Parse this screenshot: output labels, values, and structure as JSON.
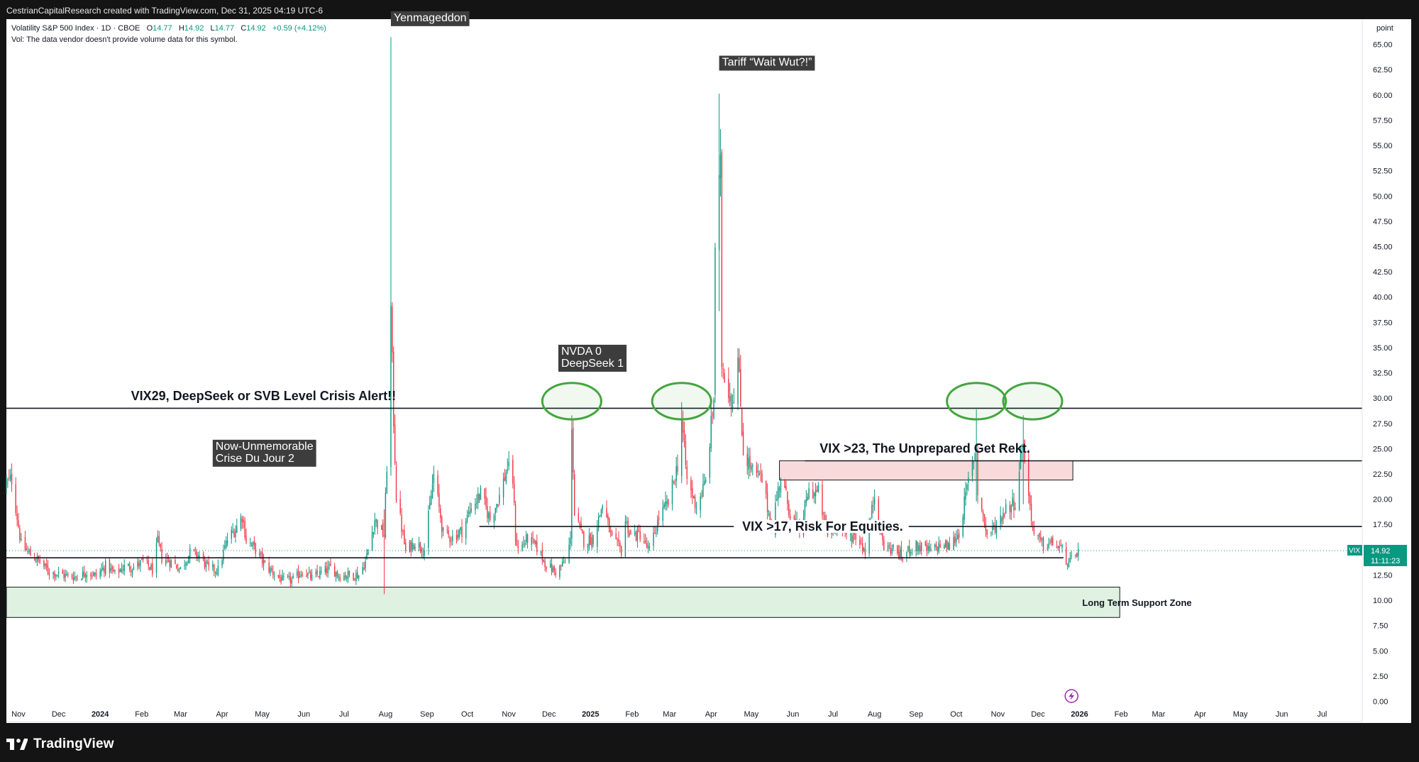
{
  "attribution": "CestrianCapitalResearch created with TradingView.com, Dec 31, 2025 04:19 UTC-6",
  "branding": {
    "name": "TradingView",
    "logo_icon": "tradingview-logo-icon"
  },
  "legend": {
    "symbol": "Volatility S&P 500 Index · 1D · CBOE",
    "open_label": "O",
    "open": "14.77",
    "high_label": "H",
    "high": "14.92",
    "low_label": "L",
    "low": "14.77",
    "close_label": "C",
    "close": "14.92",
    "change": "+0.59 (+4.12%)",
    "vol_note": "Vol: The data vendor doesn't provide volume data for this symbol."
  },
  "colors": {
    "up": "#089981",
    "down": "#f23645",
    "frame": "#141414",
    "ellipse": "#43a53d",
    "support_fill": "#dff1e0",
    "resistance_fill": "#f9dada"
  },
  "chart_data": {
    "type": "candlestick",
    "symbol": "VIX",
    "unit_label": "point",
    "y_ticks": [
      "65.00",
      "62.50",
      "60.00",
      "57.50",
      "55.00",
      "52.50",
      "50.00",
      "47.50",
      "45.00",
      "42.50",
      "40.00",
      "37.50",
      "35.00",
      "32.50",
      "30.00",
      "27.50",
      "25.00",
      "22.50",
      "20.00",
      "17.50",
      "15.00",
      "12.50",
      "10.00",
      "7.50",
      "5.00",
      "2.50",
      "0.00"
    ],
    "ylim": [
      -2.0,
      67.5
    ],
    "x_ticks": [
      {
        "label": "Nov",
        "date": "2023-11-01"
      },
      {
        "label": "Dec",
        "date": "2023-12-01"
      },
      {
        "label": "2024",
        "date": "2024-01-01",
        "bold": true
      },
      {
        "label": "Feb",
        "date": "2024-02-01"
      },
      {
        "label": "Mar",
        "date": "2024-03-01"
      },
      {
        "label": "Apr",
        "date": "2024-04-01"
      },
      {
        "label": "May",
        "date": "2024-05-01"
      },
      {
        "label": "Jun",
        "date": "2024-06-01"
      },
      {
        "label": "Jul",
        "date": "2024-07-01"
      },
      {
        "label": "Aug",
        "date": "2024-08-01"
      },
      {
        "label": "Sep",
        "date": "2024-09-01"
      },
      {
        "label": "Oct",
        "date": "2024-10-01"
      },
      {
        "label": "Nov",
        "date": "2024-11-01"
      },
      {
        "label": "Dec",
        "date": "2024-12-01"
      },
      {
        "label": "2025",
        "date": "2025-01-01",
        "bold": true
      },
      {
        "label": "Feb",
        "date": "2025-02-01"
      },
      {
        "label": "Mar",
        "date": "2025-03-01"
      },
      {
        "label": "Apr",
        "date": "2025-04-01"
      },
      {
        "label": "May",
        "date": "2025-05-01"
      },
      {
        "label": "Jun",
        "date": "2025-06-01"
      },
      {
        "label": "Jul",
        "date": "2025-07-01"
      },
      {
        "label": "Aug",
        "date": "2025-08-01"
      },
      {
        "label": "Sep",
        "date": "2025-09-01"
      },
      {
        "label": "Oct",
        "date": "2025-10-01"
      },
      {
        "label": "Nov",
        "date": "2025-11-01"
      },
      {
        "label": "Dec",
        "date": "2025-12-01"
      },
      {
        "label": "2026",
        "date": "2026-01-01",
        "bold": true
      },
      {
        "label": "Feb",
        "date": "2026-02-01"
      },
      {
        "label": "Mar",
        "date": "2026-03-01"
      },
      {
        "label": "Apr",
        "date": "2026-04-01"
      },
      {
        "label": "May",
        "date": "2026-05-01"
      },
      {
        "label": "Jun",
        "date": "2026-06-01"
      },
      {
        "label": "Jul",
        "date": "2026-07-01"
      }
    ],
    "x_range": [
      "2023-10-23",
      "2026-07-31"
    ],
    "last_price": "14.92",
    "countdown": "11:11:23",
    "price_path": [
      [
        "2023-10-23",
        21.5
      ],
      [
        "2023-10-27",
        22.0
      ],
      [
        "2023-11-03",
        15.5
      ],
      [
        "2023-11-10",
        14.5
      ],
      [
        "2023-11-17",
        13.8
      ],
      [
        "2023-11-24",
        12.8
      ],
      [
        "2023-12-01",
        12.6
      ],
      [
        "2023-12-08",
        12.4
      ],
      [
        "2023-12-15",
        12.3
      ],
      [
        "2023-12-22",
        12.8
      ],
      [
        "2023-12-29",
        12.4
      ],
      [
        "2024-01-05",
        13.4
      ],
      [
        "2024-01-12",
        12.6
      ],
      [
        "2024-01-19",
        13.3
      ],
      [
        "2024-01-26",
        13.3
      ],
      [
        "2024-02-02",
        13.8
      ],
      [
        "2024-02-09",
        13.0
      ],
      [
        "2024-02-13",
        15.8
      ],
      [
        "2024-02-16",
        14.2
      ],
      [
        "2024-02-23",
        13.8
      ],
      [
        "2024-03-01",
        13.1
      ],
      [
        "2024-03-08",
        14.7
      ],
      [
        "2024-03-15",
        14.4
      ],
      [
        "2024-03-22",
        13.1
      ],
      [
        "2024-03-29",
        13.0
      ],
      [
        "2024-04-05",
        16.0
      ],
      [
        "2024-04-12",
        17.3
      ],
      [
        "2024-04-16",
        18.4
      ],
      [
        "2024-04-19",
        16.0
      ],
      [
        "2024-04-26",
        15.0
      ],
      [
        "2024-05-03",
        13.5
      ],
      [
        "2024-05-10",
        12.6
      ],
      [
        "2024-05-17",
        11.9
      ],
      [
        "2024-05-24",
        12.0
      ],
      [
        "2024-05-31",
        12.9
      ],
      [
        "2024-06-07",
        12.2
      ],
      [
        "2024-06-14",
        12.7
      ],
      [
        "2024-06-21",
        13.2
      ],
      [
        "2024-06-28",
        12.4
      ],
      [
        "2024-07-05",
        12.5
      ],
      [
        "2024-07-12",
        12.5
      ],
      [
        "2024-07-17",
        13.8
      ],
      [
        "2024-07-24",
        18.0
      ],
      [
        "2024-07-31",
        16.4
      ],
      [
        "2024-08-02",
        23.4
      ],
      [
        "2024-08-05",
        38.6
      ],
      [
        "2024-08-07",
        27.9
      ],
      [
        "2024-08-09",
        20.4
      ],
      [
        "2024-08-16",
        14.8
      ],
      [
        "2024-08-23",
        15.8
      ],
      [
        "2024-08-30",
        15.0
      ],
      [
        "2024-09-06",
        22.4
      ],
      [
        "2024-09-13",
        16.6
      ],
      [
        "2024-09-20",
        16.2
      ],
      [
        "2024-09-27",
        16.9
      ],
      [
        "2024-10-04",
        19.2
      ],
      [
        "2024-10-11",
        20.5
      ],
      [
        "2024-10-18",
        18.0
      ],
      [
        "2024-10-25",
        20.3
      ],
      [
        "2024-10-31",
        23.2
      ],
      [
        "2024-11-04",
        21.9
      ],
      [
        "2024-11-06",
        16.3
      ],
      [
        "2024-11-08",
        15.0
      ],
      [
        "2024-11-15",
        16.1
      ],
      [
        "2024-11-22",
        15.2
      ],
      [
        "2024-11-29",
        13.5
      ],
      [
        "2024-12-06",
        12.8
      ],
      [
        "2024-12-13",
        13.8
      ],
      [
        "2024-12-17",
        15.9
      ],
      [
        "2024-12-18",
        27.6
      ],
      [
        "2024-12-20",
        18.4
      ],
      [
        "2024-12-27",
        15.9
      ],
      [
        "2025-01-03",
        16.1
      ],
      [
        "2025-01-10",
        19.5
      ],
      [
        "2025-01-17",
        16.0
      ],
      [
        "2025-01-24",
        14.9
      ],
      [
        "2025-01-27",
        17.9
      ],
      [
        "2025-01-31",
        16.4
      ],
      [
        "2025-02-07",
        16.5
      ],
      [
        "2025-02-14",
        14.8
      ],
      [
        "2025-02-21",
        18.2
      ],
      [
        "2025-02-28",
        19.6
      ],
      [
        "2025-03-07",
        23.4
      ],
      [
        "2025-03-10",
        27.9
      ],
      [
        "2025-03-14",
        21.8
      ],
      [
        "2025-03-21",
        19.3
      ],
      [
        "2025-03-28",
        21.7
      ],
      [
        "2025-04-03",
        30.0
      ],
      [
        "2025-04-04",
        45.3
      ],
      [
        "2025-04-08",
        52.3
      ],
      [
        "2025-04-09",
        33.6
      ],
      [
        "2025-04-14",
        30.9
      ],
      [
        "2025-04-17",
        29.7
      ],
      [
        "2025-04-21",
        33.8
      ],
      [
        "2025-04-25",
        24.8
      ],
      [
        "2025-05-02",
        22.7
      ],
      [
        "2025-05-09",
        21.9
      ],
      [
        "2025-05-16",
        17.2
      ],
      [
        "2025-05-23",
        22.3
      ],
      [
        "2025-05-30",
        18.6
      ],
      [
        "2025-06-06",
        16.8
      ],
      [
        "2025-06-13",
        20.8
      ],
      [
        "2025-06-20",
        20.6
      ],
      [
        "2025-06-27",
        16.3
      ],
      [
        "2025-07-04",
        17.5
      ],
      [
        "2025-07-11",
        16.4
      ],
      [
        "2025-07-18",
        16.4
      ],
      [
        "2025-07-25",
        14.9
      ],
      [
        "2025-08-01",
        20.4
      ],
      [
        "2025-08-08",
        15.2
      ],
      [
        "2025-08-15",
        15.1
      ],
      [
        "2025-08-22",
        14.2
      ],
      [
        "2025-08-29",
        15.4
      ],
      [
        "2025-09-05",
        15.2
      ],
      [
        "2025-09-12",
        14.8
      ],
      [
        "2025-09-19",
        15.5
      ],
      [
        "2025-09-26",
        15.3
      ],
      [
        "2025-10-03",
        16.7
      ],
      [
        "2025-10-10",
        21.7
      ],
      [
        "2025-10-16",
        25.3
      ],
      [
        "2025-10-17",
        20.8
      ],
      [
        "2025-10-24",
        16.4
      ],
      [
        "2025-10-31",
        17.4
      ],
      [
        "2025-11-07",
        19.1
      ],
      [
        "2025-11-14",
        19.8
      ],
      [
        "2025-11-20",
        26.3
      ],
      [
        "2025-11-21",
        23.4
      ],
      [
        "2025-11-28",
        16.4
      ],
      [
        "2025-12-05",
        15.4
      ],
      [
        "2025-12-12",
        15.7
      ],
      [
        "2025-12-19",
        14.9
      ],
      [
        "2025-12-24",
        13.5
      ],
      [
        "2025-12-31",
        14.92
      ]
    ],
    "wick_spikes": [
      {
        "date": "2024-08-05",
        "high": 65.73,
        "low": 23.4
      },
      {
        "date": "2024-07-31",
        "high": 19.0,
        "low": 10.6
      },
      {
        "date": "2025-04-07",
        "high": 60.13,
        "low": 38.6
      },
      {
        "date": "2024-12-18",
        "high": 28.3,
        "low": 15.9
      },
      {
        "date": "2025-03-10",
        "high": 29.6,
        "low": 22.0
      },
      {
        "date": "2025-10-16",
        "high": 28.9,
        "low": 19.8
      },
      {
        "date": "2025-11-20",
        "high": 28.3,
        "low": 19.5
      }
    ],
    "horizontal_levels": [
      {
        "value": 29.0,
        "from": "2023-10-23",
        "to": "2026-07-31"
      },
      {
        "value": 23.8,
        "from": "2025-06-10",
        "to": "2026-07-31"
      },
      {
        "value": 17.3,
        "from": "2024-10-10",
        "to": "2025-04-20"
      },
      {
        "value": 17.3,
        "from": "2025-06-20",
        "to": "2026-07-31"
      },
      {
        "value": 14.2,
        "from": "2023-10-23",
        "to": "2025-12-20"
      }
    ],
    "zones": [
      {
        "name": "support",
        "label": "Long Term Support Zone",
        "from": "2023-10-23",
        "to": "2026-01-31",
        "y0": 8.3,
        "y1": 11.3
      },
      {
        "name": "resistance",
        "from": "2025-05-22",
        "to": "2025-12-27",
        "y0": 21.9,
        "y1": 23.8
      }
    ],
    "ellipses": [
      {
        "date": "2024-12-18",
        "value": 29.7,
        "rx_days": 22,
        "ry": 1.8
      },
      {
        "date": "2025-03-10",
        "value": 29.7,
        "rx_days": 22,
        "ry": 1.8
      },
      {
        "date": "2025-10-16",
        "value": 29.7,
        "rx_days": 22,
        "ry": 1.8
      },
      {
        "date": "2025-11-27",
        "value": 29.7,
        "rx_days": 22,
        "ry": 1.8
      }
    ],
    "annotations": {
      "yenmageddon": {
        "text": "Yenmageddon",
        "date": "2024-08-05",
        "value": 67.3
      },
      "tariff": {
        "text": "Tariff “Wait Wut?!”",
        "date": "2025-04-07",
        "value": 62.9
      },
      "nvda_line1": {
        "text": "NVDA 0",
        "date": "2024-12-08",
        "value": 34.3
      },
      "nvda_line2": {
        "text": "DeepSeek  1",
        "date": "2024-12-08",
        "value": 33.0
      },
      "crisis_line1": {
        "text": "Now-Unmemorable",
        "date": "2024-03-25",
        "value": 24.9
      },
      "crisis_line2": {
        "text": "Crise Du Jour 2",
        "date": "2024-03-25",
        "value": 23.6
      },
      "vix29": {
        "text": "VIX29, DeepSeek or SVB Level Crisis Alert!!",
        "date": "2024-01-24",
        "value": 29.8
      },
      "vix23": {
        "text": "VIX >23, The Unprepared Get Rekt.",
        "date": "2025-06-21",
        "value": 24.6
      },
      "vix17": {
        "text": "VIX >17, Risk For Equities.",
        "date": "2025-04-20",
        "value": 17.3
      },
      "support_label": {
        "text": "Long Term Support Zone",
        "date": "2026-01-03",
        "value": 9.8
      }
    }
  }
}
